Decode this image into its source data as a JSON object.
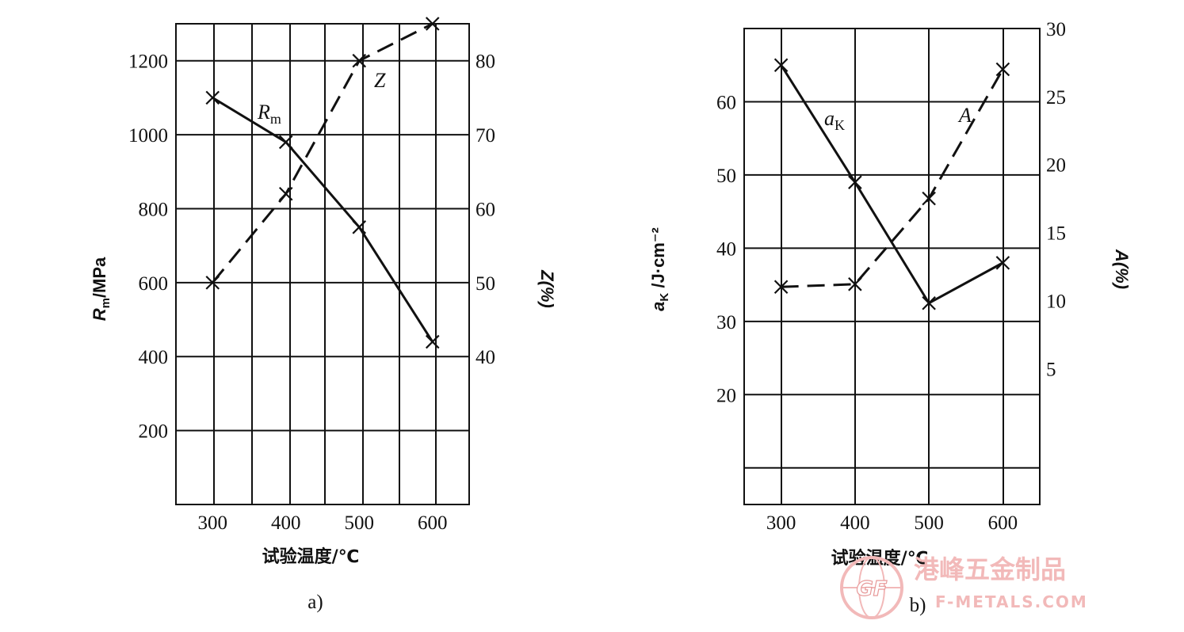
{
  "chart_data": [
    {
      "type": "line",
      "panel_label": "a)",
      "xlabel": "试验温度/℃",
      "ylabel_left_main": "R",
      "ylabel_left_sub": "m",
      "ylabel_left_unit": "/MPa",
      "ylabel_right": "Z(%)",
      "x": [
        300,
        400,
        500,
        600
      ],
      "x_tick_labels": [
        "300",
        "400",
        "500",
        "600"
      ],
      "xlim": [
        250,
        650
      ],
      "ylim_left": [
        0,
        1300
      ],
      "ylim_right": [
        20,
        85
      ],
      "left_tick_labels": [
        "200",
        "400",
        "600",
        "800",
        "1000",
        "1200"
      ],
      "right_tick_labels": [
        "40",
        "50",
        "60",
        "70",
        "80"
      ],
      "grid": true,
      "series": [
        {
          "name": "Rm",
          "label_main": "R",
          "label_sub": "m",
          "axis": "left",
          "style": "solid",
          "values": [
            1100,
            980,
            750,
            440
          ]
        },
        {
          "name": "Z",
          "label_main": "Z",
          "label_sub": "",
          "axis": "right",
          "style": "dashed",
          "values": [
            50,
            62,
            80,
            85
          ]
        }
      ]
    },
    {
      "type": "line",
      "panel_label": "b)",
      "xlabel": "试验温度/℃",
      "ylabel_left_main": "a",
      "ylabel_left_sub": "K",
      "ylabel_left_unit": " /J·cm⁻²",
      "ylabel_right": "A(%)",
      "x": [
        300,
        400,
        500,
        600
      ],
      "x_tick_labels": [
        "300",
        "400",
        "500",
        "600"
      ],
      "xlim": [
        250,
        650
      ],
      "ylim_left": [
        5,
        70
      ],
      "ylim_right": [
        -5,
        30
      ],
      "left_tick_labels": [
        "20",
        "30",
        "40",
        "50",
        "60"
      ],
      "right_tick_labels": [
        "5",
        "10",
        "15",
        "20",
        "25",
        "30"
      ],
      "grid": true,
      "series": [
        {
          "name": "aK",
          "label_main": "a",
          "label_sub": "K",
          "axis": "left",
          "style": "solid",
          "values": [
            65,
            49,
            32.5,
            38
          ]
        },
        {
          "name": "A",
          "label_main": "A",
          "label_sub": "",
          "axis": "right",
          "style": "dashed",
          "values": [
            11,
            11.2,
            17.5,
            27
          ]
        }
      ]
    }
  ],
  "watermark": {
    "logo_text": "GF",
    "chinese_text": "港峰五金制品",
    "url_text": "F-METALS.COM"
  }
}
